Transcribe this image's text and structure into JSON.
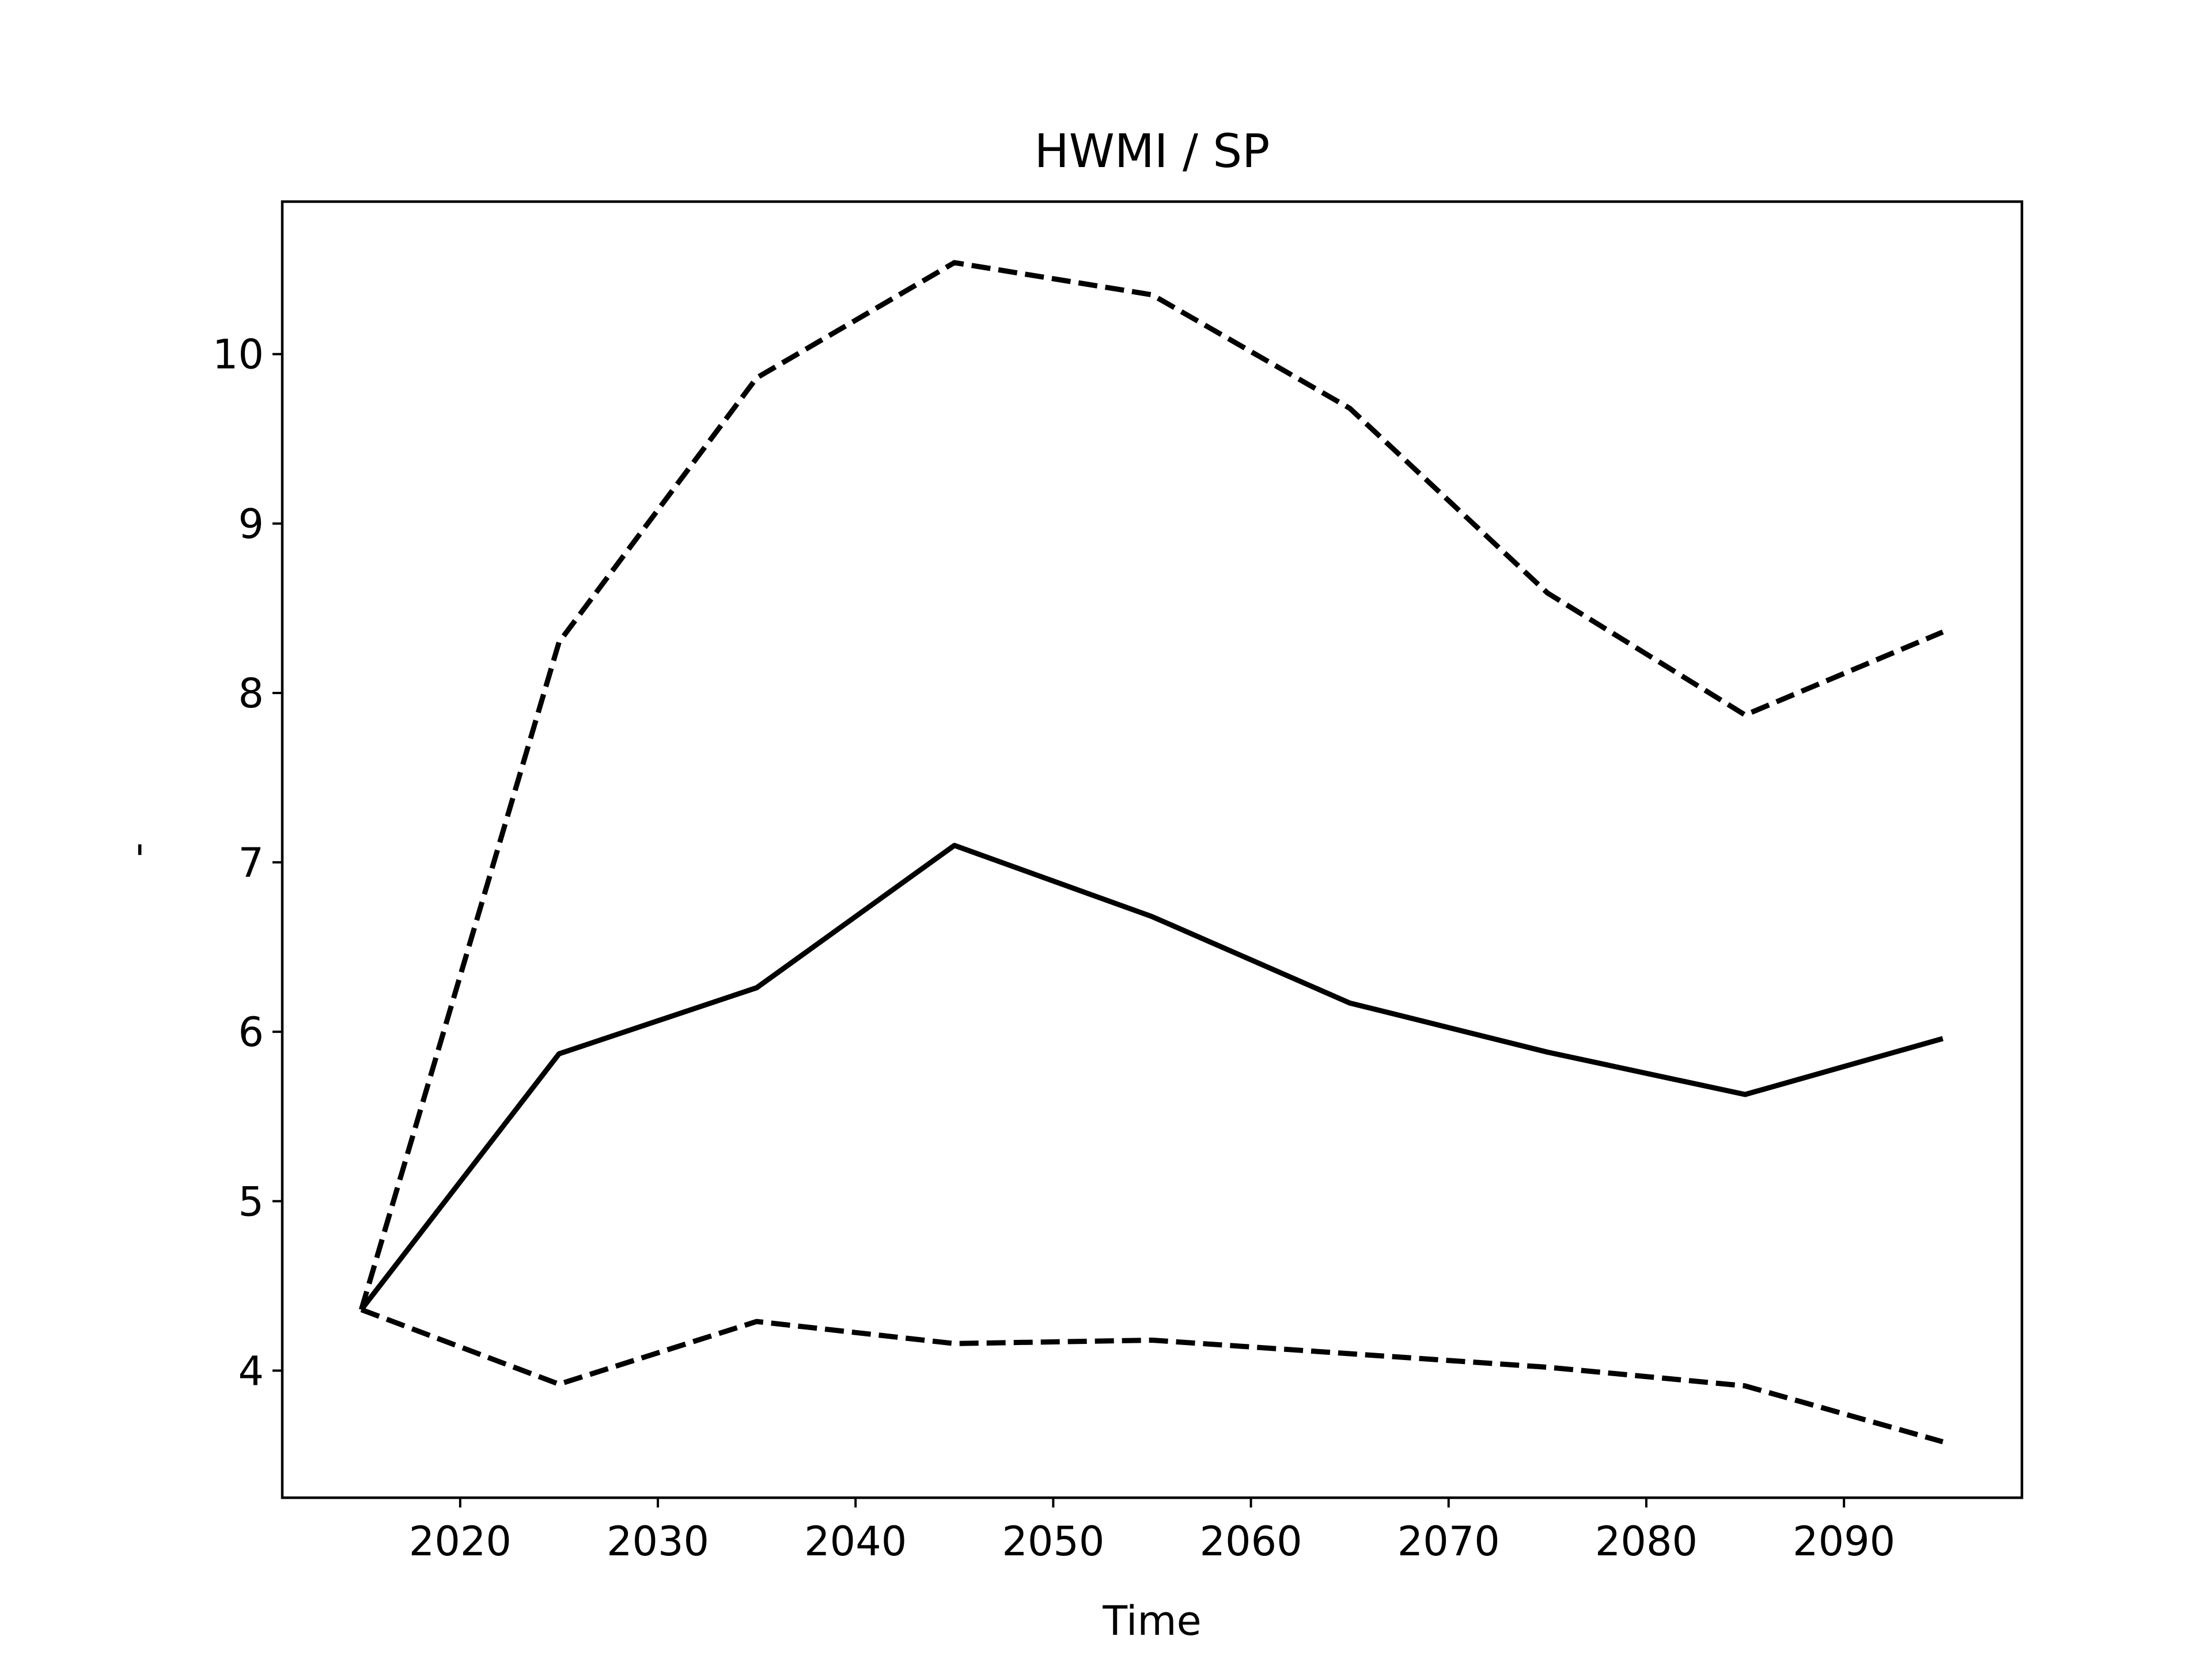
{
  "chart_data": {
    "type": "line",
    "title": "HWMI / SP",
    "xlabel": "Time",
    "ylabel": "-",
    "xlim": [
      2011,
      2099
    ],
    "ylim": [
      3.25,
      10.9
    ],
    "xticks": [
      2020,
      2030,
      2040,
      2050,
      2060,
      2070,
      2080,
      2090
    ],
    "yticks": [
      4,
      5,
      6,
      7,
      8,
      9,
      10
    ],
    "grid": false,
    "legend": "none",
    "x": [
      2015,
      2025,
      2035,
      2045,
      2055,
      2065,
      2075,
      2085,
      2095
    ],
    "series": [
      {
        "style": "solid",
        "color": "#000000",
        "values": [
          4.36,
          5.87,
          6.26,
          7.1,
          6.68,
          6.17,
          5.88,
          5.63,
          5.96
        ]
      },
      {
        "style": "dashed",
        "color": "#000000",
        "values": [
          4.36,
          8.3,
          9.86,
          10.54,
          10.35,
          9.68,
          8.59,
          7.87,
          8.36
        ]
      },
      {
        "style": "dashed",
        "color": "#000000",
        "values": [
          4.36,
          3.92,
          4.29,
          4.16,
          4.18,
          4.1,
          4.02,
          3.91,
          3.58
        ]
      }
    ]
  }
}
